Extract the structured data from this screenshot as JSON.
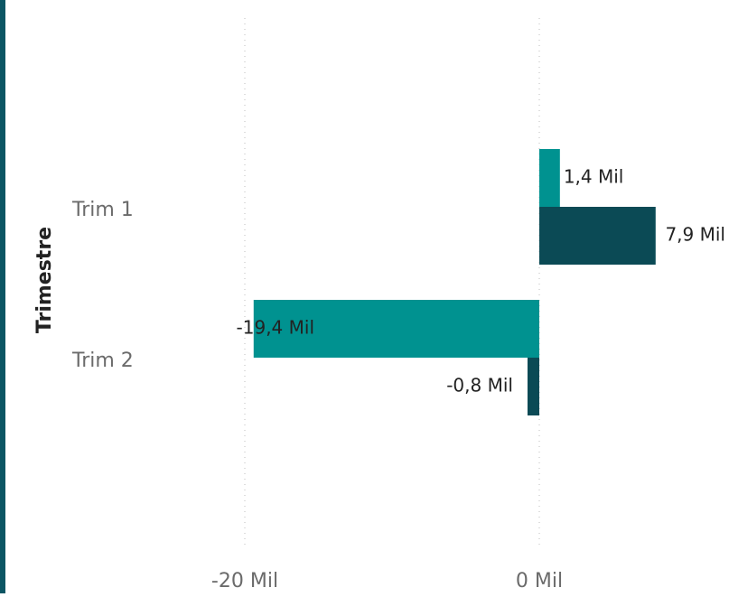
{
  "colors": {
    "series_1": "#009290",
    "series_2": "#0b4a55",
    "grid": "#c8c8c8",
    "left_edge": "#0b5563"
  },
  "chart_data": {
    "type": "bar",
    "orientation": "horizontal",
    "ylabel": "Trimestre",
    "categories": [
      "Trim 1",
      "Trim 2"
    ],
    "series": [
      {
        "values": [
          1.4,
          -19.4
        ],
        "labels": [
          "1,4 Mil",
          "-19,4 Mil"
        ],
        "color": "#009290"
      },
      {
        "values": [
          7.9,
          -0.8
        ],
        "labels": [
          "7,9 Mil",
          "-0,8 Mil"
        ],
        "color": "#0b4a55"
      }
    ],
    "xticks": [
      {
        "value": -20,
        "label": "-20 Mil"
      },
      {
        "value": 0,
        "label": "0 Mil"
      }
    ],
    "grid": true,
    "legend": "none"
  }
}
